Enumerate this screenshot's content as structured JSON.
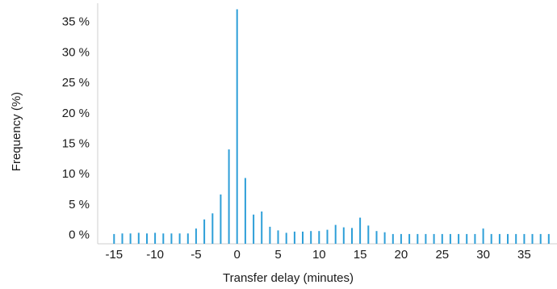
{
  "chart_data": {
    "type": "bar",
    "xlabel": "Transfer delay (minutes)",
    "ylabel": "Frequency (%)",
    "x_ticks": [
      -15,
      -10,
      -5,
      0,
      5,
      10,
      15,
      20,
      25,
      30,
      35
    ],
    "x_tick_labels": [
      "-15",
      "-10",
      "-5",
      "0",
      "5",
      "10",
      "15",
      "20",
      "25",
      "30",
      "35"
    ],
    "y_ticks": [
      0,
      5,
      10,
      15,
      20,
      25,
      30,
      35
    ],
    "y_tick_labels": [
      "0 %",
      "5 %",
      "10 %",
      "15 %",
      "20 %",
      "25 %",
      "30 %",
      "35 %"
    ],
    "xlim": [
      -17,
      39
    ],
    "ylim": [
      -1.5,
      38
    ],
    "grid": false,
    "bar_color": "#2e9fd8",
    "series": [
      {
        "x": [
          -15,
          -14,
          -13,
          -12,
          -11,
          -10,
          -9,
          -8,
          -7,
          -6,
          -5,
          -4,
          -3,
          -2,
          -1,
          0,
          1,
          2,
          3,
          4,
          5,
          6,
          7,
          8,
          9,
          10,
          11,
          12,
          13,
          14,
          15,
          16,
          17,
          18,
          19,
          20,
          21,
          22,
          23,
          24,
          25,
          26,
          27,
          28,
          29,
          30,
          31,
          32,
          33,
          34,
          35,
          36,
          37,
          38
        ],
        "values": [
          0.1,
          0.2,
          0.2,
          0.3,
          0.2,
          0.3,
          0.2,
          0.2,
          0.2,
          0.2,
          1.0,
          2.5,
          3.5,
          6.6,
          14.0,
          37.0,
          9.3,
          3.3,
          3.8,
          1.3,
          0.7,
          0.3,
          0.5,
          0.5,
          0.6,
          0.6,
          0.8,
          1.6,
          1.2,
          1.1,
          2.8,
          1.5,
          0.6,
          0.4,
          0.1,
          0.1,
          0.1,
          0.1,
          0.1,
          0.1,
          0.1,
          0.1,
          0.1,
          0.1,
          0.1,
          1.0,
          0.1,
          0.1,
          0.1,
          0.1,
          0.1,
          0.1,
          0.1,
          0.1
        ]
      }
    ]
  }
}
